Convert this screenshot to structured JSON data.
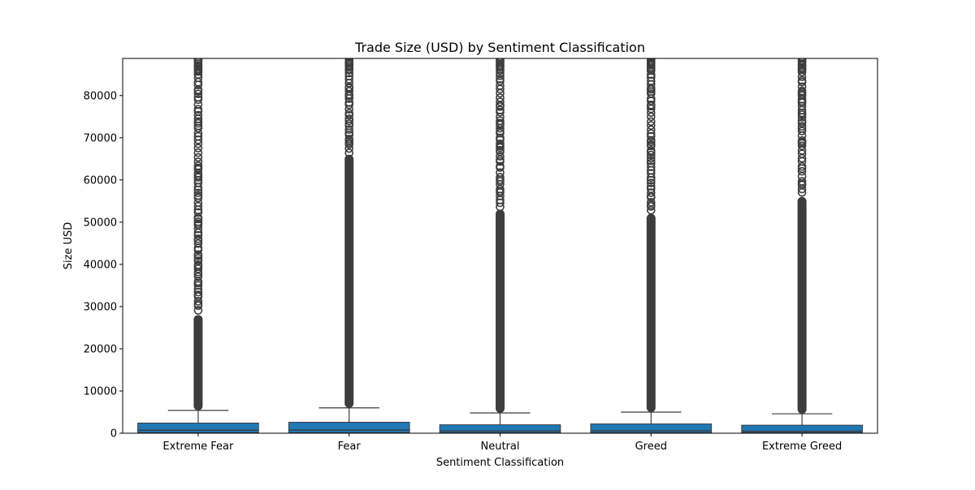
{
  "chart_data": {
    "type": "box",
    "title": "Trade Size (USD) by Sentiment Classification",
    "xlabel": "Sentiment Classification",
    "ylabel": "Size USD",
    "ylim": [
      0,
      88800
    ],
    "yticks": [
      0,
      10000,
      20000,
      30000,
      40000,
      50000,
      60000,
      70000,
      80000
    ],
    "grid": false,
    "legend": "none",
    "colors": {
      "box": "#1f77b4",
      "line": "#3d3d3d",
      "flier": "#3d3d3d"
    },
    "categories": [
      "Extreme Fear",
      "Fear",
      "Neutral",
      "Greed",
      "Extreme Greed"
    ],
    "boxes": [
      {
        "category": "Extreme Fear",
        "whisker_low": 0,
        "q1": 100,
        "median": 700,
        "q3": 2400,
        "whisker_high": 5400,
        "flier_min": 5400,
        "flier_max": 88800,
        "sparse_from": 28000
      },
      {
        "category": "Fear",
        "whisker_low": 0,
        "q1": 100,
        "median": 750,
        "q3": 2600,
        "whisker_high": 6000,
        "flier_min": 6000,
        "flier_max": 88800,
        "sparse_from": 66000
      },
      {
        "category": "Neutral",
        "whisker_low": 0,
        "q1": 100,
        "median": 500,
        "q3": 2000,
        "whisker_high": 4800,
        "flier_min": 4800,
        "flier_max": 88800,
        "sparse_from": 53000
      },
      {
        "category": "Greed",
        "whisker_low": 0,
        "q1": 100,
        "median": 550,
        "q3": 2200,
        "whisker_high": 5000,
        "flier_min": 5000,
        "flier_max": 88800,
        "sparse_from": 52000
      },
      {
        "category": "Extreme Greed",
        "whisker_low": 0,
        "q1": 100,
        "median": 450,
        "q3": 1900,
        "whisker_high": 4600,
        "flier_min": 4600,
        "flier_max": 88800,
        "sparse_from": 56000
      }
    ]
  }
}
